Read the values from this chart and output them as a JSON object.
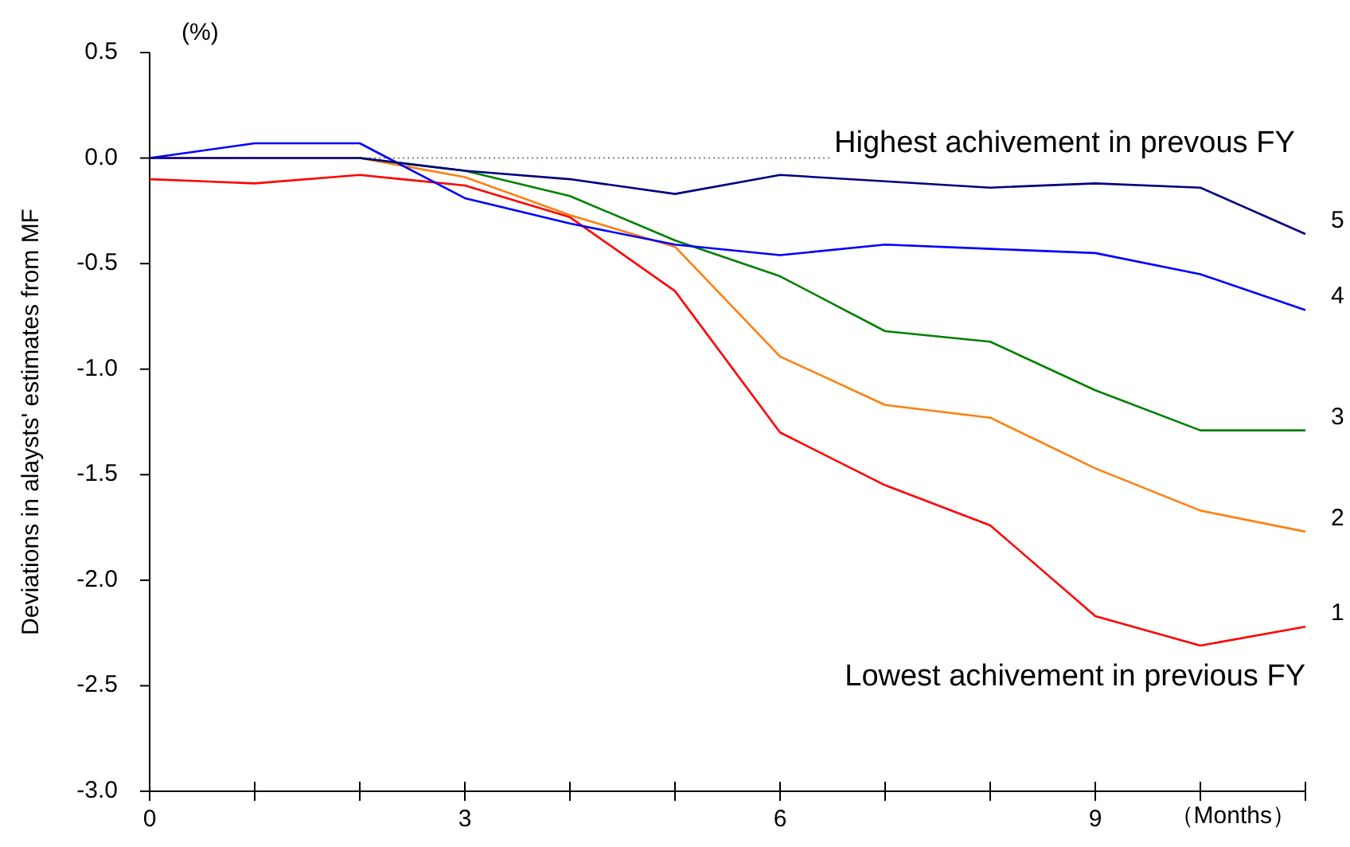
{
  "chart_data": {
    "type": "line",
    "xlabel": "（Months）",
    "ylabel": "Deviations in alaysts' estimates from MF",
    "x": [
      0,
      1,
      2,
      3,
      4,
      5,
      6,
      7,
      8,
      9,
      10,
      11
    ],
    "series": [
      {
        "name": "1",
        "color": "#ff0000",
        "values": [
          -0.1,
          -0.12,
          -0.08,
          -0.13,
          -0.28,
          -0.63,
          -1.3,
          -1.55,
          -1.74,
          -2.17,
          -2.31,
          -2.22
        ]
      },
      {
        "name": "2",
        "color": "#ff7f0e",
        "values": [
          0,
          0,
          0,
          -0.09,
          -0.27,
          -0.42,
          -0.94,
          -1.17,
          -1.23,
          -1.47,
          -1.67,
          -1.77
        ]
      },
      {
        "name": "3",
        "color": "#008000",
        "values": [
          null,
          null,
          0,
          -0.06,
          -0.18,
          -0.39,
          -0.56,
          -0.82,
          -0.87,
          -1.1,
          -1.29,
          -1.29
        ]
      },
      {
        "name": "4",
        "color": "#0000ff",
        "values": [
          0,
          0.07,
          0.07,
          -0.19,
          -0.31,
          -0.41,
          -0.46,
          -0.41,
          -0.43,
          -0.45,
          -0.55,
          -0.72
        ]
      },
      {
        "name": "5",
        "color": "#000080",
        "values": [
          0,
          0,
          0,
          -0.06,
          -0.1,
          -0.17,
          -0.08,
          -0.11,
          -0.14,
          -0.12,
          -0.14,
          -0.36
        ]
      }
    ],
    "xlim": [
      0,
      11
    ],
    "xticks": [
      0,
      {
        "value": 1,
        "label": null
      },
      {
        "value": 2,
        "label": null
      },
      3,
      {
        "value": 4,
        "label": null
      },
      {
        "value": 5,
        "label": null
      },
      6,
      {
        "value": 7,
        "label": null
      },
      {
        "value": 8,
        "label": null
      },
      9,
      {
        "value": 10,
        "label": null
      },
      {
        "value": 11,
        "label": null
      }
    ],
    "ylim": [
      -3.0,
      0.5
    ],
    "yticks": [
      {
        "value": 0.5,
        "label": "0.5"
      },
      {
        "value": 0,
        "label": "0.0"
      },
      {
        "value": -0.5,
        "label": "-0.5"
      },
      {
        "value": -1,
        "label": "-1.0"
      },
      {
        "value": -1.5,
        "label": "-1.5"
      },
      {
        "value": -2,
        "label": "-2.0"
      },
      {
        "value": -2.5,
        "label": "-2.5"
      },
      {
        "value": -3,
        "label": "-3.0"
      }
    ],
    "ref_lines": [
      {
        "axis": "y",
        "value": 0,
        "label": "Highest achivement in prevous FY",
        "color": "#808080",
        "line_style": "dotted"
      }
    ],
    "annotations": [
      "(%)",
      "Lowest achivement in previous FY"
    ],
    "grid": false,
    "legend": false,
    "marker": "none",
    "line_style": "solid"
  }
}
